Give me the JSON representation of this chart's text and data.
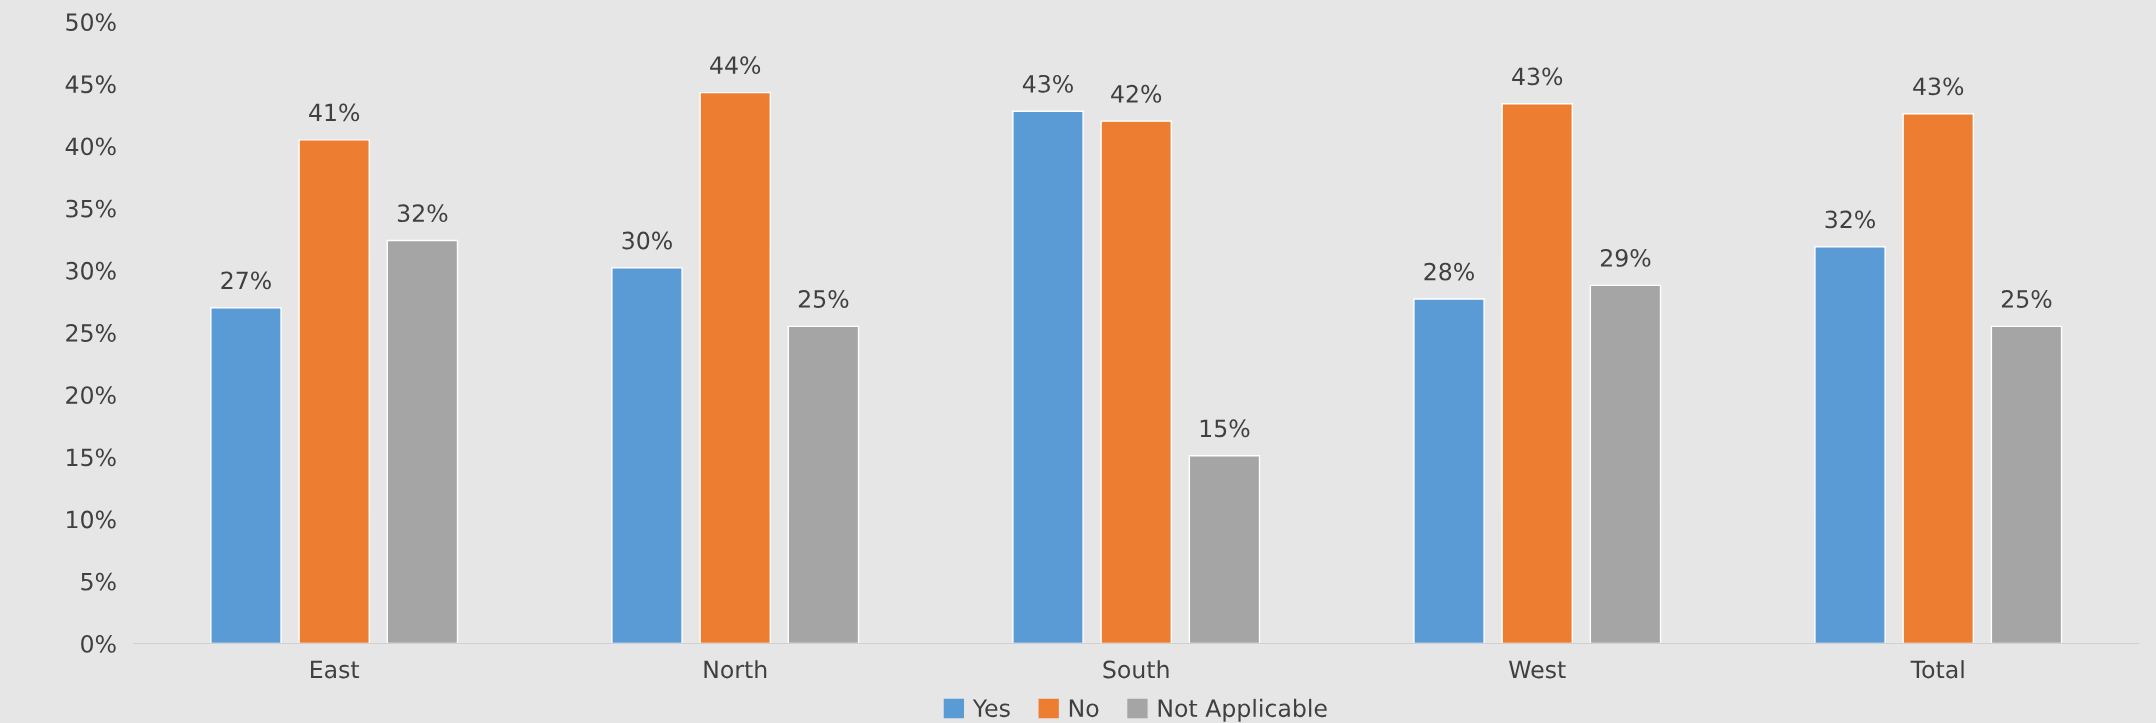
{
  "chart_data": {
    "type": "bar",
    "categories": [
      "East",
      "North",
      "South",
      "West",
      "Total"
    ],
    "series": [
      {
        "name": "Yes",
        "color": "#5b9bd5",
        "values": [
          27.0,
          30.2,
          42.8,
          27.7,
          31.9
        ],
        "value_labels": [
          "27%",
          "30%",
          "43%",
          "28%",
          "32%"
        ]
      },
      {
        "name": "No",
        "color": "#ed7d31",
        "values": [
          40.5,
          44.3,
          42.0,
          43.4,
          42.6
        ],
        "value_labels": [
          "41%",
          "44%",
          "42%",
          "43%",
          "43%"
        ]
      },
      {
        "name": "Not Applicable",
        "color": "#a5a5a5",
        "values": [
          32.4,
          25.5,
          15.1,
          28.8,
          25.5
        ],
        "value_labels": [
          "32%",
          "25%",
          "15%",
          "29%",
          "25%"
        ]
      }
    ],
    "ylim": [
      0,
      50
    ],
    "yticks": [
      {
        "value": 0,
        "label": "0%"
      },
      {
        "value": 5,
        "label": "5%"
      },
      {
        "value": 10,
        "label": "10%"
      },
      {
        "value": 15,
        "label": "15%"
      },
      {
        "value": 20,
        "label": "20%"
      },
      {
        "value": 25,
        "label": "25%"
      },
      {
        "value": 30,
        "label": "30%"
      },
      {
        "value": 35,
        "label": "35%"
      },
      {
        "value": 40,
        "label": "40%"
      },
      {
        "value": 45,
        "label": "45%"
      },
      {
        "value": 50,
        "label": "50%"
      }
    ],
    "grid": false,
    "legend": "bottom"
  }
}
